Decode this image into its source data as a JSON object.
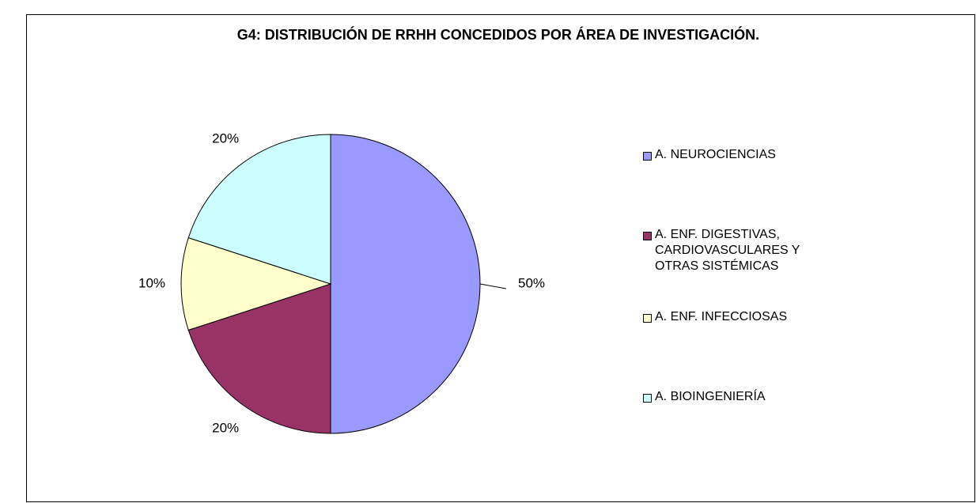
{
  "chart_data": {
    "type": "pie",
    "title": "G4: DISTRIBUCIÓN DE RRHH CONCEDIDOS POR ÁREA DE INVESTIGACIÓN.",
    "categories": [
      "A. NEUROCIENCIAS",
      "A. ENF. DIGESTIVAS, CARDIOVASCULARES Y OTRAS SISTÉMICAS",
      "A. ENF. INFECCIOSAS",
      "A. BIOINGENIERÍA"
    ],
    "values": [
      50,
      20,
      10,
      20
    ],
    "value_labels": [
      "50%",
      "20%",
      "10%",
      "20%"
    ],
    "colors": [
      "#9999ff",
      "#993366",
      "#ffffcc",
      "#ccffff"
    ],
    "legend": "right"
  }
}
